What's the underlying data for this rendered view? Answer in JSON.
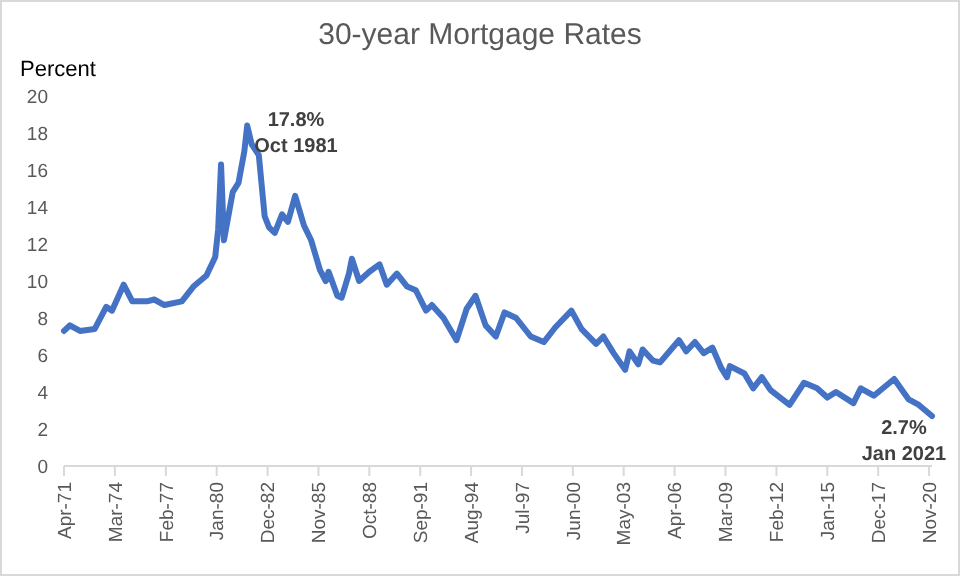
{
  "chart_data": {
    "type": "line",
    "title": "30-year Mortgage Rates",
    "ylabel": "Percent",
    "annotations": [
      "17.8%\nOct 1981",
      "2.7%\nJan 2021"
    ],
    "x": [
      "1971-04",
      "1971-08",
      "1972-03",
      "1973-01",
      "1973-09",
      "1974-01",
      "1974-09",
      "1975-03",
      "1976-01",
      "1976-06",
      "1977-01",
      "1978-01",
      "1978-09",
      "1979-06",
      "1979-12",
      "1980-02",
      "1980-04",
      "1980-06",
      "1980-12",
      "1981-04",
      "1981-08",
      "1981-10",
      "1982-01",
      "1982-06",
      "1982-10",
      "1983-01",
      "1983-05",
      "1983-10",
      "1984-02",
      "1984-07",
      "1985-01",
      "1985-06",
      "1985-12",
      "1986-04",
      "1986-06",
      "1986-12",
      "1987-03",
      "1987-08",
      "1987-10",
      "1988-03",
      "1988-10",
      "1989-05",
      "1989-10",
      "1990-05",
      "1990-12",
      "1991-06",
      "1992-01",
      "1992-05",
      "1993-01",
      "1993-10",
      "1994-05",
      "1994-11",
      "1995-06",
      "1996-01",
      "1996-07",
      "1997-03",
      "1998-01",
      "1998-10",
      "1999-06",
      "2000-05",
      "2000-12",
      "2001-10",
      "2002-03",
      "2002-10",
      "2003-06",
      "2003-09",
      "2004-03",
      "2004-06",
      "2005-01",
      "2005-06",
      "2006-07",
      "2006-12",
      "2007-06",
      "2007-12",
      "2008-06",
      "2008-12",
      "2009-04",
      "2009-06",
      "2010-04",
      "2010-10",
      "2011-04",
      "2011-10",
      "2012-11",
      "2013-09",
      "2014-06",
      "2015-01",
      "2015-07",
      "2016-07",
      "2016-12",
      "2017-09",
      "2018-11",
      "2019-09",
      "2020-04",
      "2021-01"
    ],
    "series": [
      {
        "color": "#4472c4",
        "values": [
          7.3,
          7.6,
          7.3,
          7.4,
          8.6,
          8.4,
          9.8,
          8.9,
          8.9,
          9.0,
          8.7,
          8.9,
          9.7,
          10.3,
          11.3,
          12.8,
          16.3,
          12.2,
          14.8,
          15.3,
          17.0,
          18.4,
          17.4,
          16.8,
          13.5,
          12.9,
          12.6,
          13.6,
          13.2,
          14.6,
          13.0,
          12.2,
          10.6,
          10.0,
          10.5,
          9.2,
          9.1,
          10.4,
          11.2,
          10.0,
          10.5,
          10.9,
          9.8,
          10.4,
          9.7,
          9.5,
          8.4,
          8.7,
          8.0,
          6.8,
          8.5,
          9.2,
          7.6,
          7.0,
          8.3,
          8.0,
          7.0,
          6.7,
          7.5,
          8.4,
          7.4,
          6.6,
          7.0,
          6.1,
          5.2,
          6.2,
          5.5,
          6.3,
          5.7,
          5.6,
          6.8,
          6.2,
          6.7,
          6.1,
          6.4,
          5.3,
          4.8,
          5.4,
          5.0,
          4.2,
          4.8,
          4.1,
          3.3,
          4.5,
          4.2,
          3.7,
          4.0,
          3.4,
          4.2,
          3.8,
          4.7,
          3.6,
          3.3,
          2.7
        ]
      }
    ],
    "xlim": [
      "1971-04",
      "2021-01"
    ],
    "xticks": [
      {
        "value": "1971-04",
        "label": "Apr-71"
      },
      {
        "value": "1974-03",
        "label": "Mar-74"
      },
      {
        "value": "1977-02",
        "label": "Feb-77"
      },
      {
        "value": "1980-01",
        "label": "Jan-80"
      },
      {
        "value": "1982-12",
        "label": "Dec-82"
      },
      {
        "value": "1985-11",
        "label": "Nov-85"
      },
      {
        "value": "1988-10",
        "label": "Oct-88"
      },
      {
        "value": "1991-09",
        "label": "Sep-91"
      },
      {
        "value": "1994-08",
        "label": "Aug-94"
      },
      {
        "value": "1997-07",
        "label": "Jul-97"
      },
      {
        "value": "2000-06",
        "label": "Jun-00"
      },
      {
        "value": "2003-05",
        "label": "May-03"
      },
      {
        "value": "2006-04",
        "label": "Apr-06"
      },
      {
        "value": "2009-03",
        "label": "Mar-09"
      },
      {
        "value": "2012-02",
        "label": "Feb-12"
      },
      {
        "value": "2015-01",
        "label": "Jan-15"
      },
      {
        "value": "2017-12",
        "label": "Dec-17"
      },
      {
        "value": "2020-11",
        "label": "Nov-20"
      }
    ],
    "ylim": [
      0,
      20
    ],
    "yticks": [
      0,
      2,
      4,
      6,
      8,
      10,
      12,
      14,
      16,
      18,
      20
    ],
    "grid": false,
    "marker": "none",
    "line_style": "solid"
  }
}
